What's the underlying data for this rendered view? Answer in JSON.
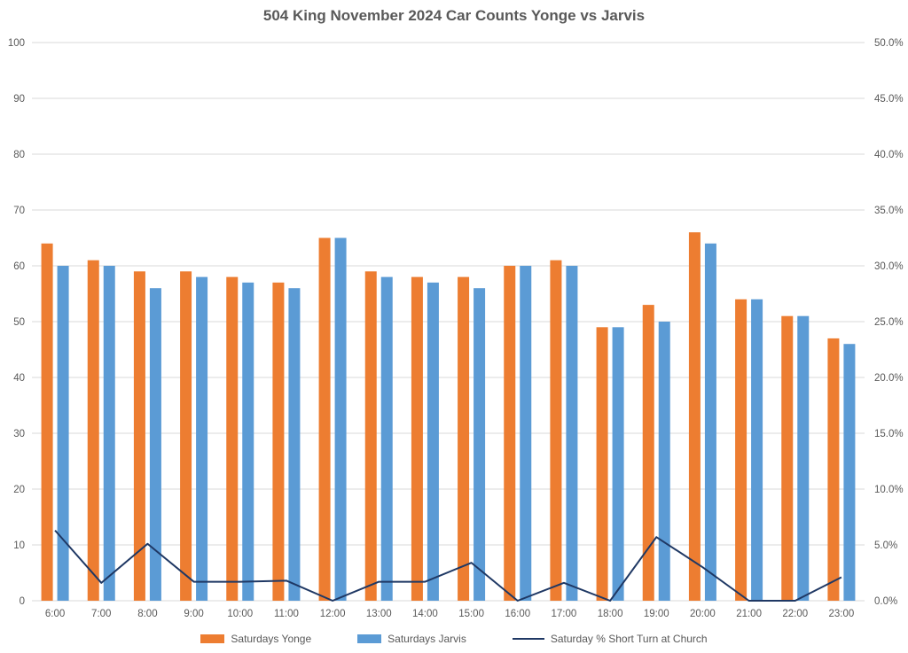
{
  "title": "504 King November 2024 Car Counts Yonge vs Jarvis",
  "legend": {
    "yonge": "Saturdays Yonge",
    "jarvis": "Saturdays Jarvis",
    "line": "Saturday % Short Turn at Church"
  },
  "colors": {
    "yonge": "#ED7D31",
    "jarvis": "#5B9BD5",
    "line": "#1F3864",
    "grid": "#D9D9D9",
    "axis_text": "#595959",
    "title_text": "#595959"
  },
  "chart_data": {
    "type": "bar",
    "title": "504 King November 2024 Car Counts Yonge vs Jarvis",
    "categories": [
      "6:00",
      "7:00",
      "8:00",
      "9:00",
      "10:00",
      "11:00",
      "12:00",
      "13:00",
      "14:00",
      "15:00",
      "16:00",
      "17:00",
      "18:00",
      "19:00",
      "20:00",
      "21:00",
      "22:00",
      "23:00"
    ],
    "series": [
      {
        "name": "Saturdays Yonge",
        "type": "bar",
        "axis": "left",
        "color": "#ED7D31",
        "values": [
          64,
          61,
          59,
          59,
          58,
          57,
          65,
          59,
          58,
          58,
          60,
          61,
          49,
          53,
          66,
          54,
          51,
          47
        ]
      },
      {
        "name": "Saturdays Jarvis",
        "type": "bar",
        "axis": "left",
        "color": "#5B9BD5",
        "values": [
          60,
          60,
          56,
          58,
          57,
          56,
          65,
          58,
          57,
          56,
          60,
          60,
          49,
          50,
          64,
          54,
          51,
          46
        ]
      },
      {
        "name": "Saturday % Short Turn at Church",
        "type": "line",
        "axis": "right",
        "color": "#1F3864",
        "values": [
          6.3,
          1.6,
          5.1,
          1.7,
          1.7,
          1.8,
          0.0,
          1.7,
          1.7,
          3.4,
          0.0,
          1.6,
          0.0,
          5.7,
          3.0,
          0.0,
          0.0,
          2.1
        ]
      }
    ],
    "left_axis": {
      "min": 0,
      "max": 100,
      "step": 10,
      "tick_labels": [
        "0",
        "10",
        "20",
        "30",
        "40",
        "50",
        "60",
        "70",
        "80",
        "90",
        "100"
      ]
    },
    "right_axis": {
      "min": 0,
      "max": 50,
      "step": 5,
      "tick_labels": [
        "0.0%",
        "5.0%",
        "10.0%",
        "15.0%",
        "20.0%",
        "25.0%",
        "30.0%",
        "35.0%",
        "40.0%",
        "45.0%",
        "50.0%"
      ]
    },
    "grid": true,
    "legend_position": "bottom"
  }
}
